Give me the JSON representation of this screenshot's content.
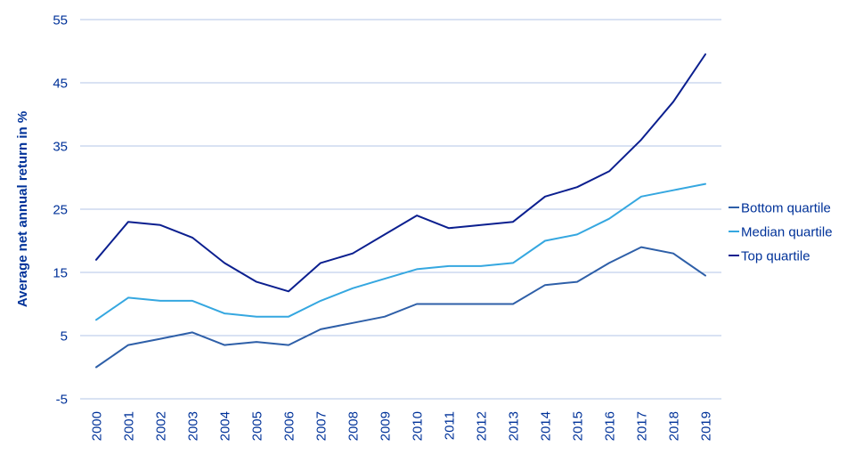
{
  "chart_data": {
    "type": "line",
    "title": "",
    "xlabel": "",
    "ylabel": "Average net annual return in %",
    "ylim": [
      -5,
      55
    ],
    "yticks": [
      55,
      45,
      35,
      25,
      15,
      5,
      -5
    ],
    "grid": true,
    "legend_position": "right",
    "x": [
      "2000",
      "2001",
      "2002",
      "2003",
      "2004",
      "2005",
      "2006",
      "2007",
      "2008",
      "2009",
      "2010",
      "2011",
      "2012",
      "2013",
      "2014",
      "2015",
      "2016",
      "2017",
      "2018",
      "2019"
    ],
    "series": [
      {
        "name": "Bottom quartile",
        "color": "#2e5fa8",
        "values": [
          0,
          3.5,
          4.5,
          5.5,
          3.5,
          4,
          3.5,
          6,
          7,
          8,
          10,
          10,
          10,
          10,
          13,
          13.5,
          16.5,
          19,
          18,
          14.5
        ]
      },
      {
        "name": "Median quartile",
        "color": "#35a7e0",
        "values": [
          7.5,
          11,
          10.5,
          10.5,
          8.5,
          8,
          8,
          10.5,
          12.5,
          14,
          15.5,
          16,
          16,
          16.5,
          20,
          21,
          23.5,
          27,
          28,
          29
        ]
      },
      {
        "name": "Top quartile",
        "color": "#0b1f8f",
        "values": [
          17,
          23,
          22.5,
          20.5,
          16.5,
          13.5,
          12,
          16.5,
          18,
          21,
          24,
          22,
          22.5,
          23,
          27,
          28.5,
          31,
          36,
          42,
          49.5
        ]
      }
    ]
  },
  "style": {
    "axis_text_color": "#003299",
    "grid_color": "#b3c6e7",
    "background": "#ffffff"
  }
}
